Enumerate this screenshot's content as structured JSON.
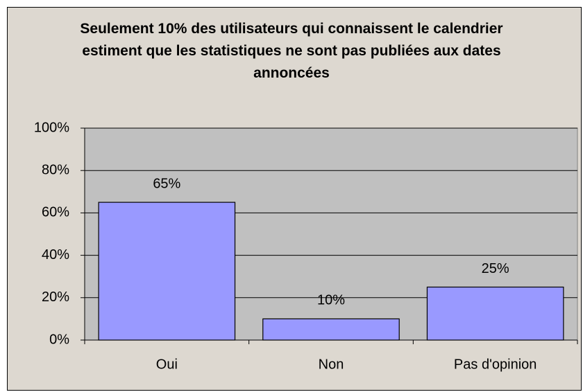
{
  "chart_data": {
    "type": "bar",
    "title": "Seulement 10% des utilisateurs qui connaissent le calendrier estiment que les statistiques ne sont pas publiées aux dates annoncées",
    "categories": [
      "Oui",
      "Non",
      "Pas d'opinion"
    ],
    "values": [
      65,
      10,
      25
    ],
    "value_labels": [
      "65%",
      "10%",
      "25%"
    ],
    "color": "#9999ff",
    "ylim": [
      0,
      100
    ],
    "yticks": [
      {
        "value": 0,
        "label": "0%"
      },
      {
        "value": 20,
        "label": "20%"
      },
      {
        "value": 40,
        "label": "40%"
      },
      {
        "value": 60,
        "label": "60%"
      },
      {
        "value": 80,
        "label": "80%"
      },
      {
        "value": 100,
        "label": "100%"
      }
    ],
    "grid": true
  }
}
